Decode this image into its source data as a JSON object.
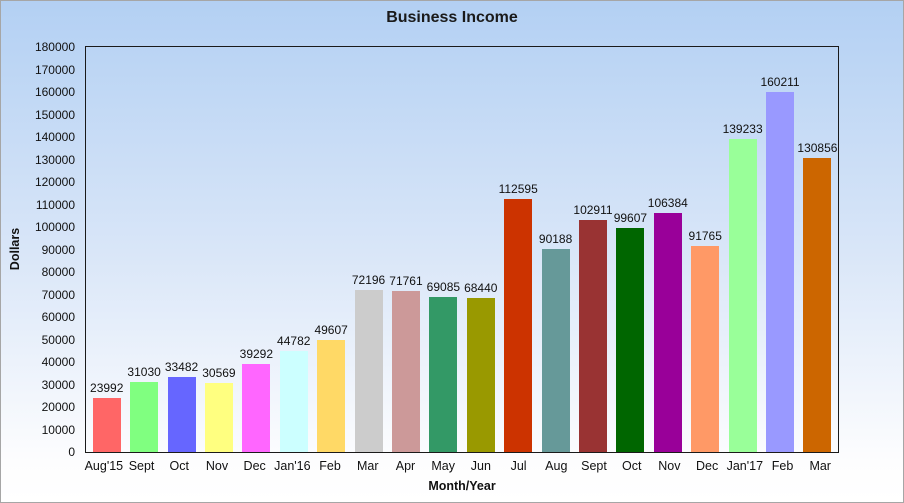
{
  "window": {
    "border_color": "#a6a6a6",
    "background_gradient": [
      "#b3d0f3",
      "#ffffff"
    ]
  },
  "chart_data": {
    "type": "bar",
    "title": "Business Income",
    "xlabel": "Month/Year",
    "ylabel": "Dollars",
    "categories": [
      "Aug'15",
      "Sept",
      "Oct",
      "Nov",
      "Dec",
      "Jan'16",
      "Feb",
      "Mar",
      "Apr",
      "May",
      "Jun",
      "Jul",
      "Aug",
      "Sept",
      "Oct",
      "Nov",
      "Dec",
      "Jan'17",
      "Feb",
      "Mar"
    ],
    "values": [
      23992,
      31030,
      33482,
      30569,
      39292,
      44782,
      49607,
      72196,
      71761,
      69085,
      68440,
      112595,
      90188,
      102911,
      99607,
      106384,
      91765,
      139233,
      160211,
      130856
    ],
    "bar_colors": [
      "#ff6666",
      "#80ff80",
      "#6666ff",
      "#ffff80",
      "#ff66ff",
      "#ccffff",
      "#ffd966",
      "#cccccc",
      "#cc9999",
      "#339966",
      "#999900",
      "#cc3300",
      "#669999",
      "#993333",
      "#006600",
      "#990099",
      "#ff9966",
      "#99ff99",
      "#9999ff",
      "#cc6600"
    ],
    "ylim": [
      0,
      180000
    ],
    "ytick_step": 10000,
    "yticks": [
      0,
      10000,
      20000,
      30000,
      40000,
      50000,
      60000,
      70000,
      80000,
      90000,
      100000,
      110000,
      120000,
      130000,
      140000,
      150000,
      160000,
      170000,
      180000
    ],
    "value_labels_shown": true,
    "grid": "off",
    "legend": "none",
    "plot_border_color": "#1a1a1a",
    "text_color": "#111111"
  }
}
